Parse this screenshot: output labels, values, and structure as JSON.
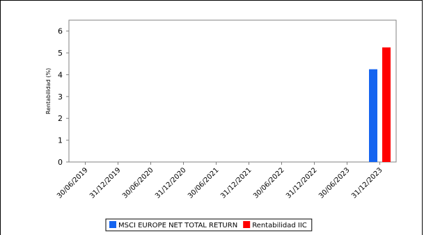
{
  "chart_data": {
    "type": "bar",
    "title": "",
    "xlabel": "",
    "ylabel": "Rentabilidad (%)",
    "ylim": [
      0,
      6.5
    ],
    "yticks": [
      0,
      1,
      2,
      3,
      4,
      5,
      6
    ],
    "categories": [
      "30/06/2019",
      "31/12/2019",
      "30/06/2020",
      "31/12/2020",
      "30/06/2021",
      "31/12/2021",
      "30/06/2022",
      "31/12/2022",
      "30/06/2023",
      "31/12/2023"
    ],
    "series": [
      {
        "name": "MSCI EUROPE NET TOTAL RETURN",
        "color": "#1464f0",
        "values": [
          null,
          null,
          null,
          null,
          null,
          null,
          null,
          null,
          null,
          4.25
        ]
      },
      {
        "name": "Rentabilidad IIC",
        "color": "#ff0000",
        "values": [
          null,
          null,
          null,
          null,
          null,
          null,
          null,
          null,
          null,
          5.25
        ]
      }
    ],
    "grid": false,
    "legend_position": "bottom"
  }
}
